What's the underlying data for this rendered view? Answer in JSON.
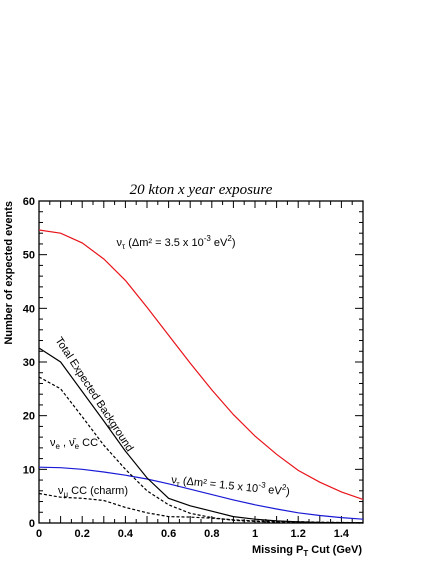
{
  "chart_data": {
    "type": "line",
    "title": "20 kton x year exposure",
    "xlabel": "Missing P",
    "xlabel_sub": "T",
    "xlabel_rest": " Cut (GeV)",
    "ylabel": "Number of expected events",
    "xlim": [
      0,
      1.5
    ],
    "ylim": [
      0,
      60
    ],
    "x_ticks": [
      0,
      0.2,
      0.4,
      0.6,
      0.8,
      1,
      1.2,
      1.4
    ],
    "x_tick_labels": [
      "0",
      "0.2",
      "0.4",
      "0.6",
      "0.8",
      "1",
      "1.2",
      "1.4"
    ],
    "y_ticks": [
      0,
      10,
      20,
      30,
      40,
      50,
      60
    ],
    "y_tick_labels": [
      "0",
      "10",
      "20",
      "30",
      "40",
      "50",
      "60"
    ],
    "series": [
      {
        "name": "ν_τ (Δm² = 3.5 x 10⁻³ eV²)",
        "color": "#e8141b",
        "style": "solid",
        "points": [
          [
            0,
            54.6
          ],
          [
            0.1,
            54.0
          ],
          [
            0.2,
            52.2
          ],
          [
            0.3,
            49.2
          ],
          [
            0.4,
            45.2
          ],
          [
            0.5,
            40.2
          ],
          [
            0.6,
            35.0
          ],
          [
            0.7,
            29.8
          ],
          [
            0.8,
            24.8
          ],
          [
            0.9,
            20.2
          ],
          [
            1.0,
            16.2
          ],
          [
            1.1,
            12.8
          ],
          [
            1.2,
            9.8
          ],
          [
            1.3,
            7.6
          ],
          [
            1.4,
            5.8
          ],
          [
            1.5,
            4.4
          ]
        ]
      },
      {
        "name": "ν_τ (Δm² = 1.5 x 10⁻³ eV²)",
        "color": "#1a1ad6",
        "style": "solid",
        "points": [
          [
            0,
            10.4
          ],
          [
            0.1,
            10.3
          ],
          [
            0.2,
            10.0
          ],
          [
            0.3,
            9.5
          ],
          [
            0.4,
            8.9
          ],
          [
            0.5,
            8.2
          ],
          [
            0.6,
            7.3
          ],
          [
            0.7,
            6.3
          ],
          [
            0.8,
            5.3
          ],
          [
            0.9,
            4.3
          ],
          [
            1.0,
            3.4
          ],
          [
            1.1,
            2.6
          ],
          [
            1.2,
            1.9
          ],
          [
            1.3,
            1.4
          ],
          [
            1.4,
            1.0
          ],
          [
            1.5,
            0.7
          ]
        ]
      },
      {
        "name": "Total Expected Background",
        "color": "#000000",
        "style": "solid",
        "points": [
          [
            0,
            32.6
          ],
          [
            0.1,
            30.0
          ],
          [
            0.2,
            24.5
          ],
          [
            0.3,
            19.0
          ],
          [
            0.4,
            13.4
          ],
          [
            0.5,
            8.4
          ],
          [
            0.6,
            4.6
          ],
          [
            0.7,
            3.2
          ],
          [
            0.8,
            2.2
          ],
          [
            0.9,
            1.2
          ],
          [
            1.0,
            0.7
          ],
          [
            1.1,
            0.4
          ],
          [
            1.2,
            0.2
          ],
          [
            1.3,
            0.1
          ],
          [
            1.5,
            0.05
          ]
        ]
      },
      {
        "name": "ν_e , ν̄_e CC",
        "color": "#000000",
        "style": "dashed",
        "points": [
          [
            0,
            27.2
          ],
          [
            0.1,
            25.0
          ],
          [
            0.2,
            19.8
          ],
          [
            0.3,
            14.5
          ],
          [
            0.4,
            10.0
          ],
          [
            0.5,
            6.0
          ],
          [
            0.6,
            3.4
          ],
          [
            0.7,
            1.8
          ],
          [
            0.8,
            1.0
          ],
          [
            0.9,
            0.5
          ],
          [
            1.0,
            0.3
          ],
          [
            1.1,
            0.15
          ],
          [
            1.2,
            0.1
          ],
          [
            1.5,
            0.0
          ]
        ]
      },
      {
        "name": "ν_μ CC (charm)",
        "color": "#000000",
        "style": "dashed",
        "points": [
          [
            0,
            5.5
          ],
          [
            0.1,
            4.8
          ],
          [
            0.2,
            4.6
          ],
          [
            0.3,
            4.2
          ],
          [
            0.4,
            2.9
          ],
          [
            0.5,
            1.9
          ],
          [
            0.6,
            1.2
          ],
          [
            0.7,
            1.1
          ],
          [
            0.8,
            0.9
          ],
          [
            0.9,
            0.6
          ],
          [
            1.0,
            0.4
          ],
          [
            1.1,
            0.3
          ],
          [
            1.2,
            0.25
          ],
          [
            1.3,
            0.15
          ],
          [
            1.5,
            0.05
          ]
        ]
      }
    ],
    "annotations": {
      "nutau_high": {
        "nu": "ν",
        "sub": "τ",
        "text": " (Δm² = 3.5 x 10",
        "exp": "-3",
        "unit": " eV",
        "unit_exp": "2",
        "close": ")"
      },
      "nutau_low": {
        "nu": "ν",
        "sub": "τ",
        "text": " (Δm² = 1.5 x 10",
        "exp": "-3",
        "unit": " eV",
        "unit_exp": "2",
        "close": ")"
      },
      "background": "Total Expected Background",
      "nue": {
        "nu1": "ν",
        "sub1": "e",
        "sep": " , ",
        "nu2": "ν̄",
        "sub2": "e",
        "rest": " CC"
      },
      "numu": {
        "nu": "ν",
        "sub": "μ",
        "rest": " CC (charm)"
      }
    },
    "grid": false,
    "legend": "none"
  }
}
